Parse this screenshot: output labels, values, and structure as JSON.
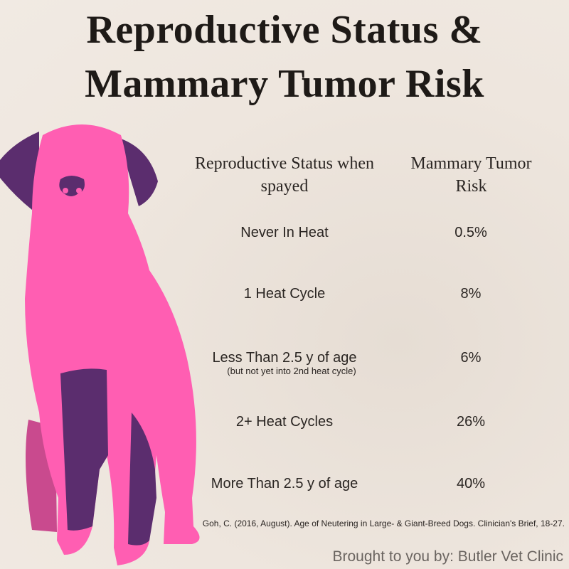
{
  "header": {
    "title_lines": [
      "Reproductive Status &",
      "Mammary Tumor Risk"
    ]
  },
  "table": {
    "columns": [
      "Reproductive Status when spayed",
      "Mammary Tumor Risk"
    ],
    "rows": [
      {
        "status": "Never In Heat",
        "risk": "0.5%"
      },
      {
        "status": "1 Heat Cycle",
        "risk": "8%"
      },
      {
        "status": "Less Than 2.5 y of age",
        "note": "(but not yet into 2nd heat cycle)",
        "risk": "6%"
      },
      {
        "status": "2+ Heat Cycles",
        "risk": "26%"
      },
      {
        "status": "More Than 2.5 y of age",
        "risk": "40%"
      }
    ]
  },
  "citation": "Goh, C. (2016, August). Age of Neutering in Large- & Giant-Breed Dogs. Clinician's Brief, 18-27.",
  "footer": "Brought to you by: Butler Vet Clinic"
}
